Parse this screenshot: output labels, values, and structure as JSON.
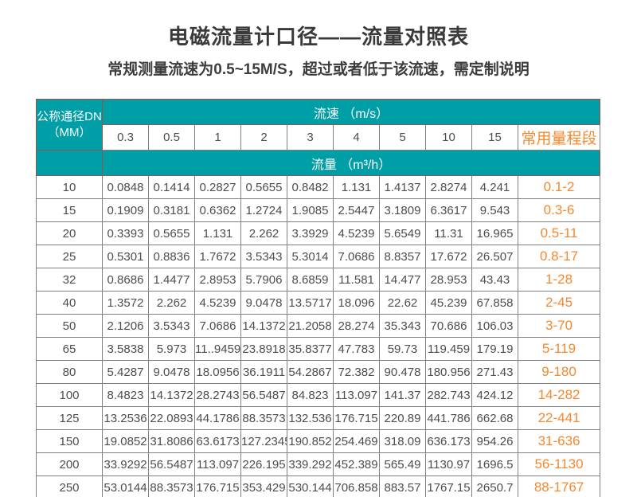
{
  "header": {
    "title": "电磁流量计口径——流量对照表",
    "subtitle": "常规测量流速为0.5~15M/S，超过或者低于该流速，需定制说明"
  },
  "colors": {
    "teal": "#009fa7",
    "orange": "#f6882e",
    "cell_text": "#4d4d4d",
    "grid_gray": "#808080",
    "teal_border": "#99544a"
  },
  "table": {
    "corner_header_line1": "公称通径DN",
    "corner_header_line2": "（MM）",
    "velocity_header": "流速 （m/s）",
    "flow_header": "流量 （m³/h）",
    "range_header": "常用量程段",
    "velocity_values": [
      "0.3",
      "0.5",
      "1",
      "2",
      "3",
      "4",
      "5",
      "10",
      "15"
    ],
    "rows": [
      {
        "dn": "10",
        "flows": [
          "0.0848",
          "0.1414",
          "0.2827",
          "0.5655",
          "0.8482",
          "1.131",
          "1.4137",
          "2.8274",
          "4.241"
        ],
        "range": "0.1-2"
      },
      {
        "dn": "15",
        "flows": [
          "0.1909",
          "0.3181",
          "0.6362",
          "1.2724",
          "1.9085",
          "2.5447",
          "3.1809",
          "6.3617",
          "9.543"
        ],
        "range": "0.3-6"
      },
      {
        "dn": "20",
        "flows": [
          "0.3393",
          "0.5655",
          "1.131",
          "2.262",
          "3.3929",
          "4.5239",
          "5.6549",
          "11.31",
          "16.965"
        ],
        "range": "0.5-11"
      },
      {
        "dn": "25",
        "flows": [
          "0.5301",
          "0.8836",
          "1.7672",
          "3.5343",
          "5.3014",
          "7.0686",
          "8.8357",
          "17.672",
          "26.507"
        ],
        "range": "0.8-17"
      },
      {
        "dn": "32",
        "flows": [
          "0.8686",
          "1.4477",
          "2.8953",
          "5.7906",
          "8.6859",
          "11.581",
          "14.477",
          "28.953",
          "43.43"
        ],
        "range": "1-28"
      },
      {
        "dn": "40",
        "flows": [
          "1.3572",
          "2.262",
          "4.5239",
          "9.0478",
          "13.5717",
          "18.096",
          "22.62",
          "45.239",
          "67.858"
        ],
        "range": "2-45"
      },
      {
        "dn": "50",
        "flows": [
          "2.1206",
          "3.5343",
          "7.0686",
          "14.1372",
          "21.2058",
          "28.274",
          "35.343",
          "70.686",
          "106.03"
        ],
        "range": "3-70"
      },
      {
        "dn": "65",
        "flows": [
          "3.5838",
          "5.973",
          "11..9459",
          "23.8918",
          "35.8377",
          "47.783",
          "59.73",
          "119.459",
          "179.19"
        ],
        "range": "5-119"
      },
      {
        "dn": "80",
        "flows": [
          "5.4287",
          "9.0478",
          "18.0956",
          "36.1911",
          "54.2867",
          "72.382",
          "90.478",
          "180.956",
          "271.43"
        ],
        "range": "9-180"
      },
      {
        "dn": "100",
        "flows": [
          "8.4823",
          "14.1372",
          "28.2743",
          "56.5487",
          "84.823",
          "113.097",
          "141.37",
          "282.743",
          "424.12"
        ],
        "range": "14-282"
      },
      {
        "dn": "125",
        "flows": [
          "13.2536",
          "22.0893",
          "44.1786",
          "88.3573",
          "132.536",
          "176.715",
          "220.89",
          "441.786",
          "662.68"
        ],
        "range": "22-441"
      },
      {
        "dn": "150",
        "flows": [
          "19.0852",
          "31.8086",
          "63.6173",
          "127.2345",
          "190.852",
          "254.469",
          "318.09",
          "636.173",
          "954.26"
        ],
        "range": "31-636"
      },
      {
        "dn": "200",
        "flows": [
          "33.9292",
          "56.5487",
          "113.097",
          "226.195",
          "339.292",
          "452.389",
          "565.49",
          "1130.97",
          "1696.5"
        ],
        "range": "56-1130"
      },
      {
        "dn": "250",
        "flows": [
          "53.0144",
          "88.3573",
          "176.715",
          "353.429",
          "530.144",
          "706.858",
          "883.57",
          "1767.15",
          "2650.7"
        ],
        "range": "88-1767"
      }
    ]
  }
}
